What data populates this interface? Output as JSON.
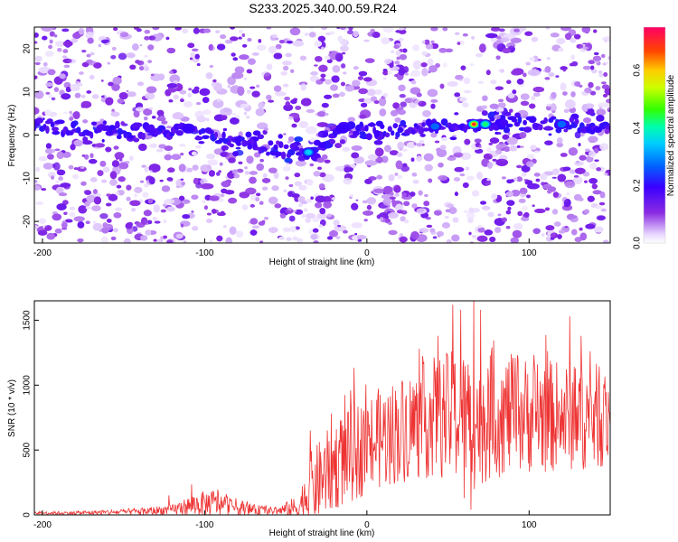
{
  "title": "S233.2025.340.00.59.R24",
  "chart_data": [
    {
      "type": "heatmap",
      "xlabel": "Height of straight line (km)",
      "ylabel": "Frequency (Hz)",
      "xlim": [
        -205,
        150
      ],
      "ylim": [
        -25,
        25
      ],
      "xticks": [
        -200,
        -100,
        0,
        100
      ],
      "yticks": [
        -20,
        -10,
        0,
        10,
        20
      ],
      "colorbar": {
        "label": "Normalized spectral amplitude",
        "range": [
          0.0,
          0.75
        ],
        "ticks": [
          "0.0",
          "0.2",
          "0.4",
          "0.6"
        ],
        "tick_values": [
          0.0,
          0.2,
          0.4,
          0.6
        ]
      },
      "ridge": {
        "description_points": [
          [
            -205,
            2
          ],
          [
            -150,
            1
          ],
          [
            -110,
            1
          ],
          [
            -60,
            -3
          ],
          [
            -35,
            -4
          ],
          [
            -20,
            1
          ],
          [
            0,
            1
          ],
          [
            40,
            2
          ],
          [
            70,
            2.5
          ],
          [
            100,
            2.5
          ],
          [
            150,
            2.5
          ]
        ]
      },
      "hotspots": [
        {
          "x": -110,
          "y": 1.5,
          "value": 0.25
        },
        {
          "x": -36,
          "y": -4,
          "value": 0.38
        },
        {
          "x": -15,
          "y": 1.5,
          "value": 0.22
        },
        {
          "x": 42,
          "y": 2,
          "value": 0.28
        },
        {
          "x": 66,
          "y": 2.5,
          "value": 0.7
        },
        {
          "x": 73,
          "y": 2.5,
          "value": 0.45
        },
        {
          "x": 120,
          "y": 2.5,
          "value": 0.33
        }
      ]
    },
    {
      "type": "line",
      "xlabel": "Height of straight line (km)",
      "ylabel": "SNR (10 * v/v)",
      "xlim": [
        -205,
        150
      ],
      "ylim": [
        0,
        1650
      ],
      "xticks": [
        -200,
        -100,
        0,
        100
      ],
      "yticks": [
        0,
        500,
        1000,
        1500
      ],
      "series": [
        {
          "name": "SNR",
          "color": "#ee3333",
          "envelope": {
            "x": [
              -205,
              -180,
              -160,
              -140,
              -120,
              -105,
              -95,
              -85,
              -70,
              -55,
              -42,
              -35,
              -20,
              -5,
              10,
              25,
              40,
              55,
              65,
              75,
              90,
              110,
              130,
              150
            ],
            "base": [
              15,
              15,
              20,
              25,
              40,
              80,
              90,
              70,
              40,
              30,
              60,
              200,
              380,
              500,
              600,
              680,
              750,
              760,
              720,
              760,
              780,
              760,
              760,
              760
            ],
            "amp": [
              10,
              15,
              20,
              30,
              40,
              90,
              110,
              80,
              40,
              30,
              100,
              280,
              350,
              380,
              400,
              420,
              470,
              520,
              550,
              500,
              460,
              440,
              420,
              400
            ]
          },
          "peaks": [
            [
              -122,
              150
            ],
            [
              -108,
              235
            ],
            [
              -92,
              195
            ],
            [
              -35,
              650
            ],
            [
              -22,
              780
            ],
            [
              -10,
              960
            ],
            [
              22,
              1000
            ],
            [
              44,
              1380
            ],
            [
              53,
              1620
            ],
            [
              58,
              1580
            ],
            [
              66,
              1650
            ],
            [
              70,
              1580
            ],
            [
              77,
              1290
            ],
            [
              105,
              1160
            ],
            [
              125,
              1530
            ],
            [
              132,
              1380
            ]
          ],
          "troughs": [
            [
              64,
              40
            ],
            [
              60,
              130
            ]
          ]
        }
      ]
    }
  ]
}
